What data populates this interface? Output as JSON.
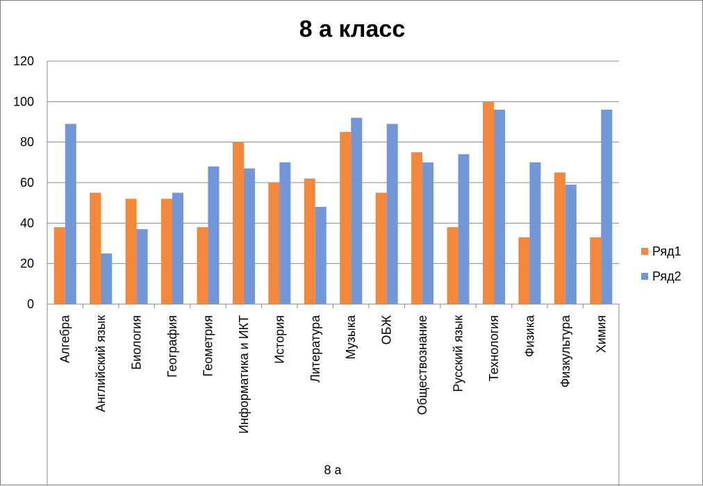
{
  "chart_data": {
    "type": "bar",
    "title": "8 а класс",
    "xlabel": "",
    "ylabel": "",
    "ylim": [
      0,
      120
    ],
    "yticks": [
      0,
      20,
      40,
      60,
      80,
      100,
      120
    ],
    "grid": "horizontal",
    "legend": "right",
    "group_label": "8 а",
    "categories": [
      "Алгебра",
      "Английский язык",
      "Биология",
      "География",
      "Геометрия",
      "Информатика и ИКТ",
      "История",
      "Литература",
      "Музыка",
      "ОБЖ",
      "Обществознание",
      "Русский язык",
      "Технология",
      "Физика",
      "Физкультура",
      "Химия"
    ],
    "series": [
      {
        "name": "Ряд1",
        "color": "#f4883a",
        "values": [
          38,
          55,
          52,
          52,
          38,
          80,
          60,
          62,
          85,
          55,
          75,
          38,
          100,
          33,
          65,
          33
        ]
      },
      {
        "name": "Ряд2",
        "color": "#7297d8",
        "values": [
          89,
          25,
          37,
          55,
          68,
          67,
          70,
          48,
          92,
          89,
          70,
          74,
          96,
          70,
          59,
          96
        ]
      }
    ]
  }
}
